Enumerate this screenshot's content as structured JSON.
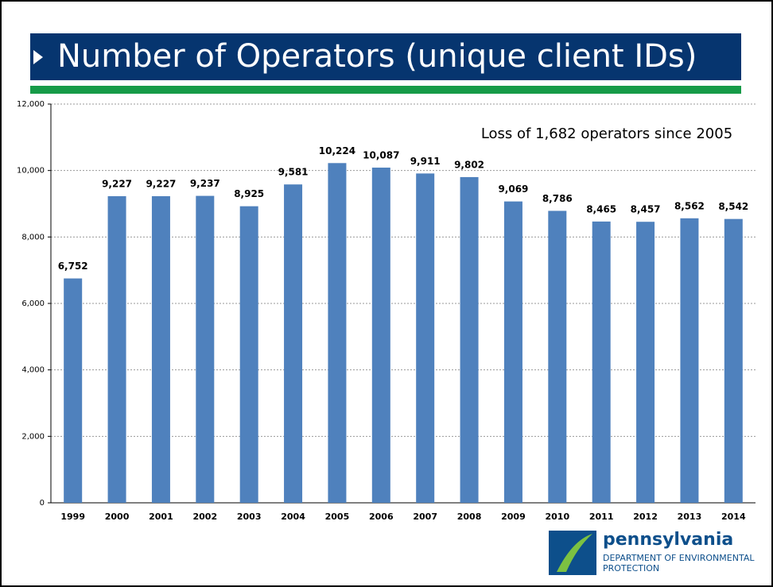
{
  "chart_data": {
    "type": "bar",
    "title": "Number of Operators (unique client IDs)",
    "annotation": "Loss of 1,682 operators since 2005",
    "categories": [
      "1999",
      "2000",
      "2001",
      "2002",
      "2003",
      "2004",
      "2005",
      "2006",
      "2007",
      "2008",
      "2009",
      "2010",
      "2011",
      "2012",
      "2013",
      "2014"
    ],
    "values": [
      6752,
      9227,
      9227,
      9237,
      8925,
      9581,
      10224,
      10087,
      9911,
      9802,
      9069,
      8786,
      8465,
      8457,
      8562,
      8542
    ],
    "value_labels": [
      "6,752",
      "9,227",
      "9,227",
      "9,237",
      "8,925",
      "9,581",
      "10,224",
      "10,087",
      "9,911",
      "9,802",
      "9,069",
      "8,786",
      "8,465",
      "8,457",
      "8,562",
      "8,542"
    ],
    "color": "#4f81bd",
    "ylim": [
      0,
      12000
    ],
    "yticks": [
      0,
      {
        "value": 2000,
        "label": "2,000"
      },
      {
        "value": 4000,
        "label": "4,000"
      },
      {
        "value": 6000,
        "label": "6,000"
      },
      {
        "value": 8000,
        "label": "8,000"
      },
      {
        "value": 10000,
        "label": "10,000"
      },
      {
        "value": 12000,
        "label": "12,000"
      }
    ],
    "grid": true
  },
  "logo": {
    "name": "pennsylvania",
    "line1": "DEPARTMENT OF ENVIRONMENTAL",
    "line2": "PROTECTION"
  }
}
